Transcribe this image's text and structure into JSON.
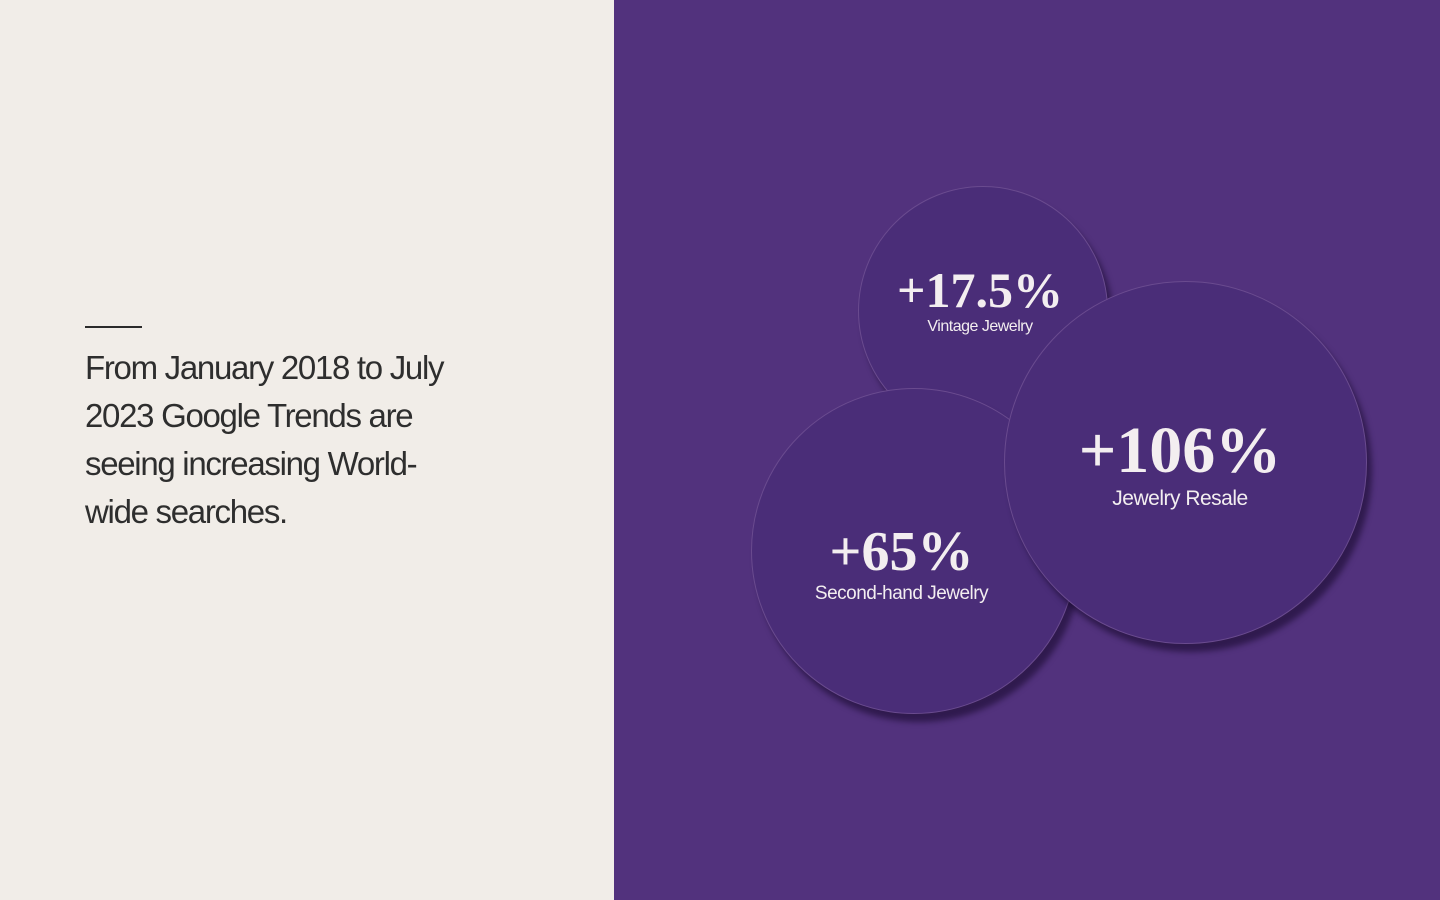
{
  "intro": {
    "text": "From January 2018 to July 2023 Google Trends are seeing increasing World-wide searches."
  },
  "stats": {
    "vintage": {
      "value": "+17.5%",
      "label": "Vintage Jewelry"
    },
    "second_hand": {
      "value": "+65%",
      "label": "Second-hand Jewelry"
    },
    "resale": {
      "value": "+106%",
      "label": "Jewelry Resale"
    }
  },
  "colors": {
    "left_background": "#f1ede8",
    "right_background": "#52327d",
    "bubble_fill": "#4a2d78",
    "text_light": "#f3eef0",
    "text_dark": "#2e2e2e"
  }
}
